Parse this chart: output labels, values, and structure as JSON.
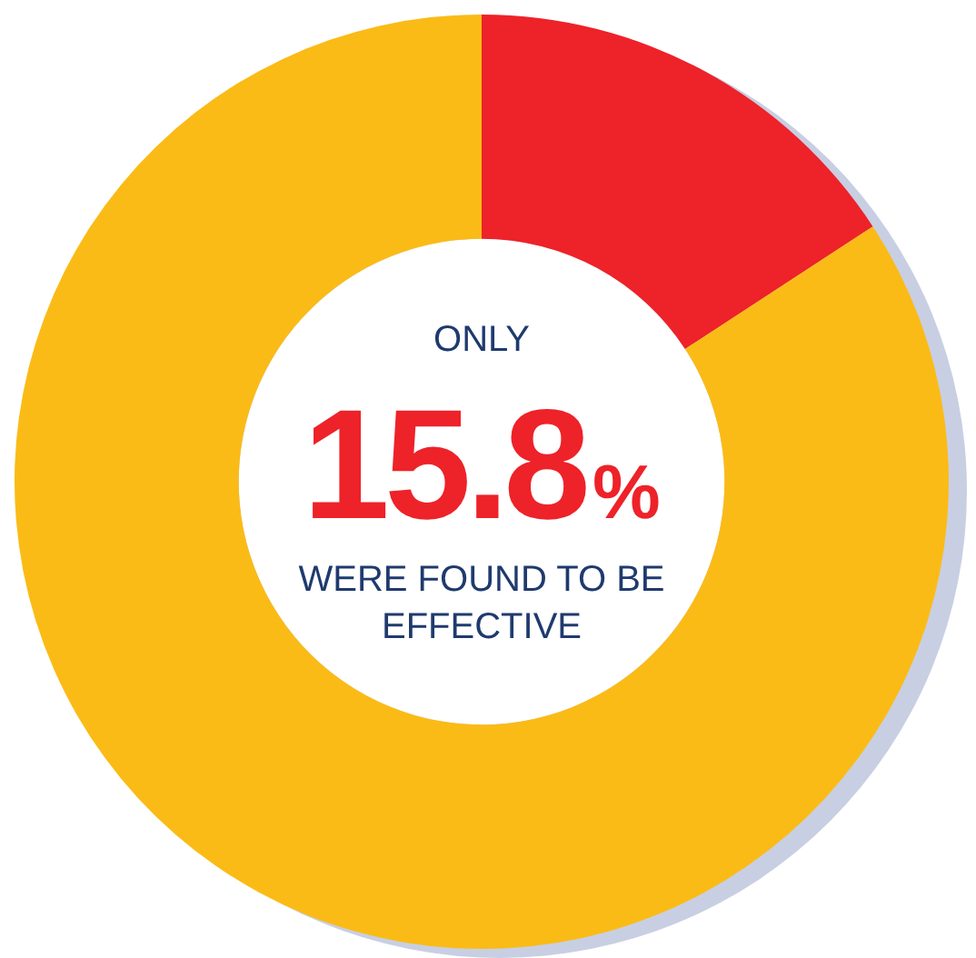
{
  "chart_data": {
    "type": "donut",
    "categories": [
      null,
      null
    ],
    "values": [
      15.8,
      84.2
    ],
    "colors": [
      "#ee2229",
      "#fbbb16"
    ],
    "annotations": [
      "ONLY",
      "15.8%",
      "WERE FOUND TO BE EFFECTIVE"
    ]
  }
}
